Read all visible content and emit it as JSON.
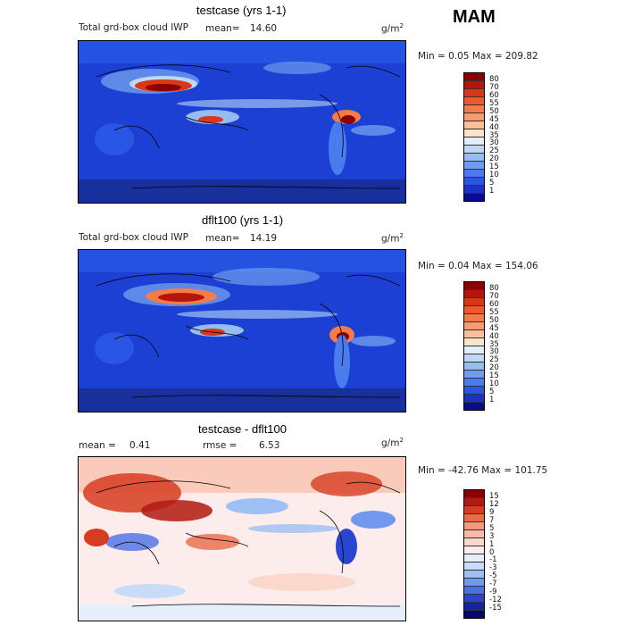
{
  "season": "MAM",
  "panels": [
    {
      "title": "testcase (yrs 1-1)",
      "subtitle": "Total grd-box cloud IWP",
      "stat1_label": "mean=",
      "stat1_value": "14.60",
      "unit_base": "g/m",
      "unit_exp": "2",
      "minmax": "Min =   0.05 Max = 209.82",
      "colorbar": {
        "labels": [
          "80",
          "70",
          "60",
          "55",
          "50",
          "45",
          "40",
          "35",
          "30",
          "25",
          "20",
          "15",
          "10",
          "5",
          "1"
        ],
        "colors": [
          "#8b0000",
          "#b4160c",
          "#d83818",
          "#ee5a2c",
          "#f47c48",
          "#f89c70",
          "#fbc09a",
          "#fde3c8",
          "#e4eefa",
          "#c0d6f2",
          "#97bcee",
          "#6e9cee",
          "#4a7cf0",
          "#2a56e6",
          "#1a32c8",
          "#0a0a8c"
        ]
      }
    },
    {
      "title": "dflt100 (yrs 1-1)",
      "subtitle": "Total grd-box cloud IWP",
      "stat1_label": "mean=",
      "stat1_value": "14.19",
      "unit_base": "g/m",
      "unit_exp": "2",
      "minmax": "Min =   0.04 Max = 154.06",
      "colorbar": {
        "labels": [
          "80",
          "70",
          "60",
          "55",
          "50",
          "45",
          "40",
          "35",
          "30",
          "25",
          "20",
          "15",
          "10",
          "5",
          "1"
        ],
        "colors": [
          "#8b0000",
          "#b4160c",
          "#d83818",
          "#ee5a2c",
          "#f47c48",
          "#f89c70",
          "#fbc09a",
          "#fde3c8",
          "#e4eefa",
          "#c0d6f2",
          "#97bcee",
          "#6e9cee",
          "#4a7cf0",
          "#2a56e6",
          "#1a32c8",
          "#0a0a8c"
        ]
      }
    },
    {
      "title": "testcase - dflt100",
      "stat1_label": "mean =",
      "stat1_value": "0.41",
      "stat2_label": "rmse =",
      "stat2_value": "6.53",
      "unit_base": "g/m",
      "unit_exp": "2",
      "minmax": "Min = -42.76 Max = 101.75",
      "colorbar": {
        "labels": [
          "15",
          "12",
          "9",
          "7",
          "5",
          "3",
          "1",
          "0",
          "-1",
          "-3",
          "-5",
          "-7",
          "-9",
          "-12",
          "-15"
        ],
        "colors": [
          "#8b0000",
          "#b01a10",
          "#d63c20",
          "#ec6a48",
          "#f49a7c",
          "#f8bca6",
          "#fbd8cc",
          "#fdecec",
          "#e6eefc",
          "#c8dcf8",
          "#9ec0f4",
          "#7098ee",
          "#4a70e6",
          "#2a46d0",
          "#1424a8",
          "#06066c"
        ]
      }
    }
  ]
}
